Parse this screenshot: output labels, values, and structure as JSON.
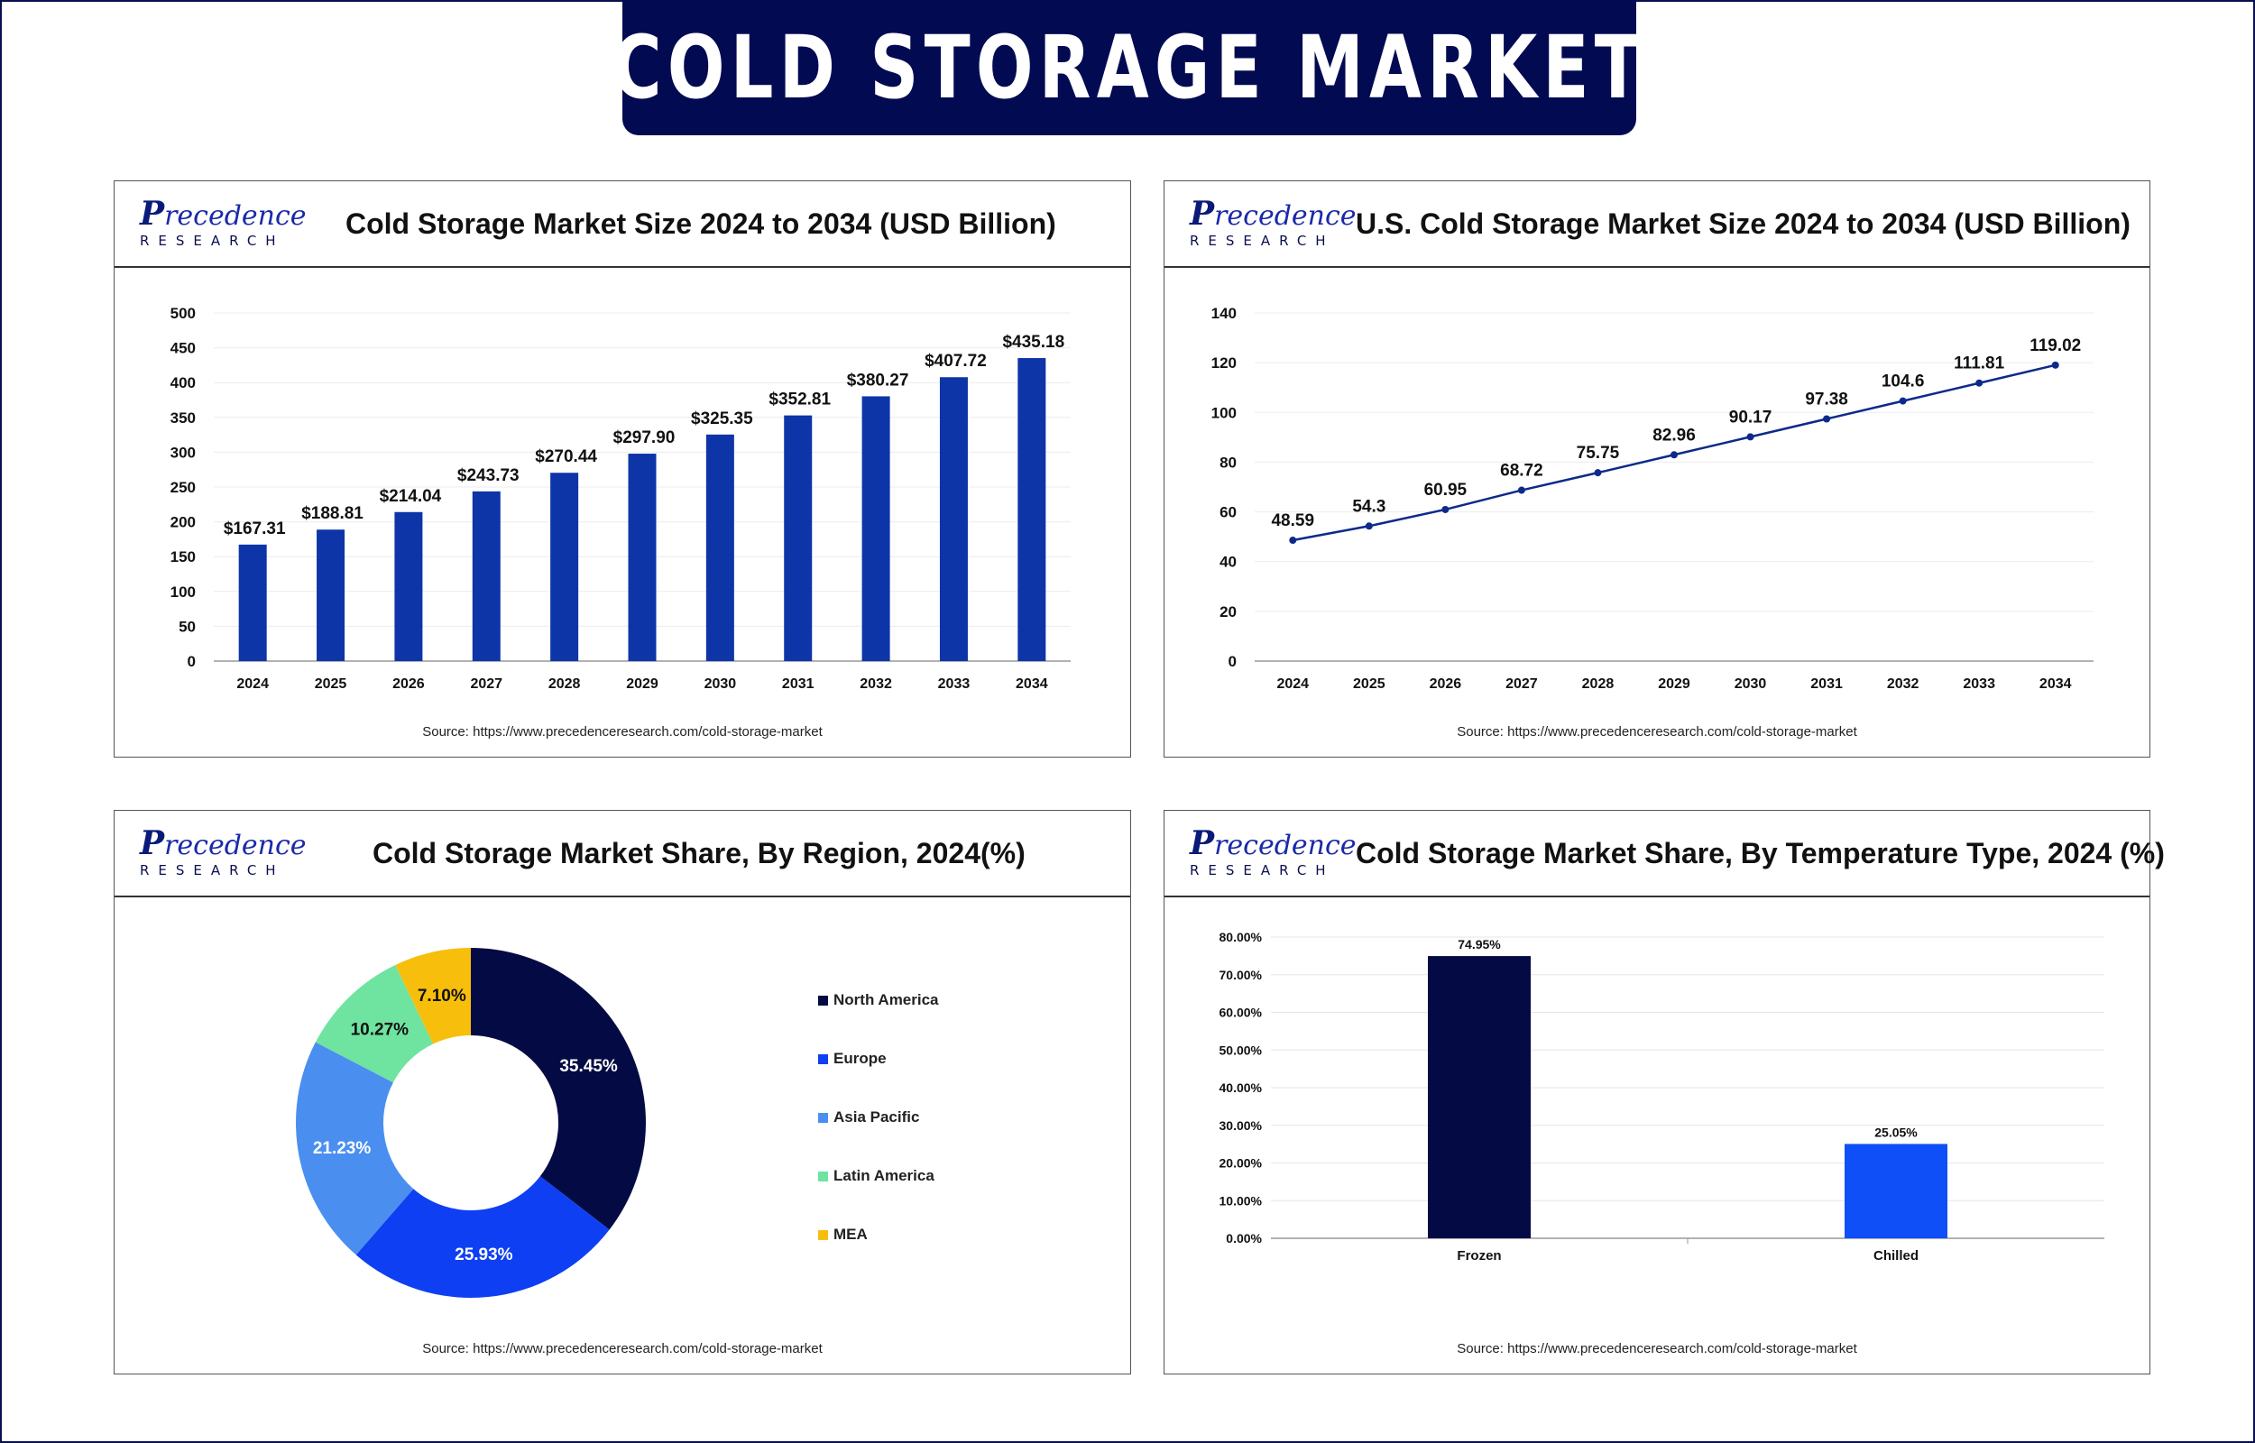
{
  "page_title": "COLD STORAGE MARKET",
  "logo": {
    "top_initial": "P",
    "top_rest": "recedence",
    "bottom": "RESEARCH"
  },
  "panels": {
    "global": {
      "title": "Cold Storage Market Size 2024 to 2034 (USD Billion)",
      "source": "Source: https://www.precedenceresearch.com/cold-storage-market"
    },
    "us": {
      "title": "U.S. Cold Storage Market Size 2024 to 2034 (USD Billion)",
      "source": "Source: https://www.precedenceresearch.com/cold-storage-market"
    },
    "region": {
      "title": "Cold Storage Market Share, By Region, 2024(%)",
      "source": "Source: https://www.precedenceresearch.com/cold-storage-market"
    },
    "temperature": {
      "title": "Cold Storage Market Share, By Temperature Type, 2024 (%)",
      "source": "Source: https://www.precedenceresearch.com/cold-storage-market"
    }
  },
  "chart_data": [
    {
      "type": "bar",
      "title": "Cold Storage Market Size 2024 to 2034 (USD Billion)",
      "categories": [
        "2024",
        "2025",
        "2026",
        "2027",
        "2028",
        "2029",
        "2030",
        "2031",
        "2032",
        "2033",
        "2034"
      ],
      "values": [
        167.31,
        188.81,
        214.04,
        243.73,
        270.44,
        297.9,
        325.35,
        352.81,
        380.27,
        407.72,
        435.18
      ],
      "data_labels": [
        "$167.31",
        "$188.81",
        "$214.04",
        "$243.73",
        "$270.44",
        "$297.90",
        "$325.35",
        "$352.81",
        "$380.27",
        "$407.72",
        "$435.18"
      ],
      "yticks": [
        "0",
        "50",
        "100",
        "150",
        "200",
        "250",
        "300",
        "350",
        "400",
        "450",
        "500"
      ],
      "ylim": [
        0,
        500
      ],
      "color": "#0d35a8",
      "grid": true
    },
    {
      "type": "line",
      "title": "U.S. Cold Storage Market Size 2024 to 2034 (USD Billion)",
      "categories": [
        "2024",
        "2025",
        "2026",
        "2027",
        "2028",
        "2029",
        "2030",
        "2031",
        "2032",
        "2033",
        "2034"
      ],
      "values": [
        48.59,
        54.3,
        60.95,
        68.72,
        75.75,
        82.96,
        90.17,
        97.38,
        104.6,
        111.81,
        119.02
      ],
      "data_labels": [
        "48.59",
        "54.3",
        "60.95",
        "68.72",
        "75.75",
        "82.96",
        "90.17",
        "97.38",
        "104.6",
        "111.81",
        "119.02"
      ],
      "yticks": [
        "0",
        "20",
        "40",
        "60",
        "80",
        "100",
        "120",
        "140"
      ],
      "ylim": [
        0,
        140
      ],
      "color": "#0d2a8a",
      "grid": true
    },
    {
      "type": "pie",
      "title": "Cold Storage Market Share, By Region, 2024(%)",
      "categories": [
        "North America",
        "Europe",
        "Asia Pacific",
        "Latin America",
        "MEA"
      ],
      "values": [
        35.45,
        25.93,
        21.23,
        10.27,
        7.1
      ],
      "data_labels": [
        "35.45%",
        "25.93%",
        "21.23%",
        "10.27%",
        "7.10%"
      ],
      "colors": [
        "#040b44",
        "#0e3ff2",
        "#4a8ff0",
        "#6fe3a0",
        "#f7bf0c"
      ],
      "label_colors": [
        "#ffffff",
        "#ffffff",
        "#ffffff",
        "#111111",
        "#111111"
      ],
      "legend_position": "right"
    },
    {
      "type": "bar",
      "title": "Cold Storage Market Share, By Temperature Type, 2024 (%)",
      "categories": [
        "Frozen",
        "Chilled"
      ],
      "values": [
        74.95,
        25.05
      ],
      "data_labels": [
        "74.95%",
        "25.05%"
      ],
      "yticks": [
        "0.00%",
        "10.00%",
        "20.00%",
        "30.00%",
        "40.00%",
        "50.00%",
        "60.00%",
        "70.00%",
        "80.00%"
      ],
      "ylim": [
        0,
        80
      ],
      "colors": [
        "#040b44",
        "#0e4ff7"
      ],
      "grid": true
    }
  ]
}
